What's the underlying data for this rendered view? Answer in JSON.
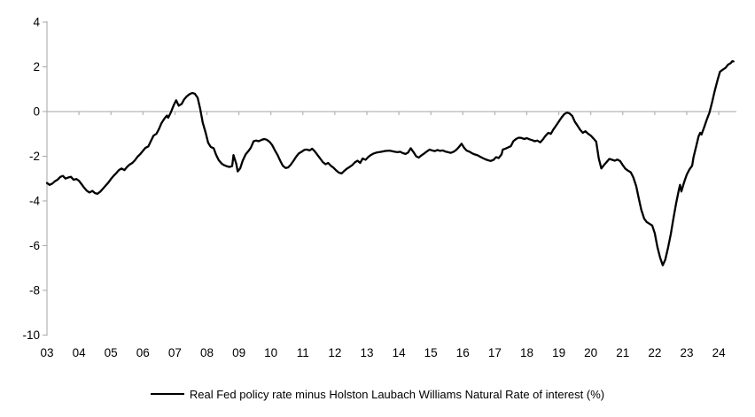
{
  "chart_data": {
    "type": "line",
    "title": "",
    "legend": "Real Fed policy rate minus Holston Laubach Williams Natural Rate of interest (%)",
    "xlabel": "",
    "ylabel": "",
    "ylim": [
      -10,
      4
    ],
    "xlim": [
      2003,
      2024.55
    ],
    "grid": false,
    "legend_position": "bottom",
    "y_tick_labels": [
      "4",
      "2",
      "0",
      "-2",
      "-4",
      "-6",
      "-8",
      "-10"
    ],
    "y_ticks": [
      4,
      2,
      0,
      -2,
      -4,
      -6,
      -8,
      -10
    ],
    "x_labels": [
      "03",
      "04",
      "05",
      "06",
      "07",
      "08",
      "09",
      "10",
      "11",
      "12",
      "13",
      "14",
      "15",
      "16",
      "17",
      "18",
      "19",
      "20",
      "21",
      "22",
      "23",
      "24"
    ],
    "x_label_years": [
      2003,
      2004,
      2005,
      2006,
      2007,
      2008,
      2009,
      2010,
      2011,
      2012,
      2013,
      2014,
      2015,
      2016,
      2017,
      2018,
      2019,
      2020,
      2021,
      2022,
      2023,
      2024
    ],
    "axis_color": "#a6a6a6",
    "zero_line_color": "#a6a6a6",
    "text_color": "#000000",
    "background": "#ffffff",
    "series": [
      {
        "name": "Real Fed policy rate minus Holston Laubach Williams Natural Rate of interest (%)",
        "color": "#000000",
        "points": [
          [
            2003.0,
            -3.2
          ],
          [
            2003.08,
            -3.28
          ],
          [
            2003.17,
            -3.22
          ],
          [
            2003.25,
            -3.12
          ],
          [
            2003.33,
            -3.05
          ],
          [
            2003.42,
            -2.92
          ],
          [
            2003.5,
            -2.88
          ],
          [
            2003.58,
            -3.0
          ],
          [
            2003.67,
            -2.95
          ],
          [
            2003.75,
            -2.92
          ],
          [
            2003.83,
            -3.05
          ],
          [
            2003.92,
            -3.02
          ],
          [
            2004.0,
            -3.1
          ],
          [
            2004.08,
            -3.25
          ],
          [
            2004.17,
            -3.42
          ],
          [
            2004.25,
            -3.55
          ],
          [
            2004.33,
            -3.62
          ],
          [
            2004.42,
            -3.55
          ],
          [
            2004.5,
            -3.65
          ],
          [
            2004.58,
            -3.68
          ],
          [
            2004.67,
            -3.58
          ],
          [
            2004.75,
            -3.45
          ],
          [
            2004.83,
            -3.32
          ],
          [
            2004.92,
            -3.18
          ],
          [
            2005.0,
            -3.02
          ],
          [
            2005.08,
            -2.88
          ],
          [
            2005.17,
            -2.75
          ],
          [
            2005.25,
            -2.62
          ],
          [
            2005.33,
            -2.55
          ],
          [
            2005.42,
            -2.62
          ],
          [
            2005.5,
            -2.48
          ],
          [
            2005.58,
            -2.38
          ],
          [
            2005.67,
            -2.3
          ],
          [
            2005.75,
            -2.18
          ],
          [
            2005.83,
            -2.02
          ],
          [
            2005.92,
            -1.9
          ],
          [
            2006.0,
            -1.76
          ],
          [
            2006.08,
            -1.62
          ],
          [
            2006.17,
            -1.56
          ],
          [
            2006.25,
            -1.32
          ],
          [
            2006.33,
            -1.08
          ],
          [
            2006.42,
            -1.0
          ],
          [
            2006.5,
            -0.78
          ],
          [
            2006.58,
            -0.52
          ],
          [
            2006.67,
            -0.32
          ],
          [
            2006.75,
            -0.18
          ],
          [
            2006.79,
            -0.28
          ],
          [
            2006.87,
            -0.05
          ],
          [
            2006.96,
            0.28
          ],
          [
            2007.04,
            0.5
          ],
          [
            2007.12,
            0.26
          ],
          [
            2007.21,
            0.34
          ],
          [
            2007.29,
            0.55
          ],
          [
            2007.37,
            0.68
          ],
          [
            2007.46,
            0.78
          ],
          [
            2007.54,
            0.83
          ],
          [
            2007.62,
            0.8
          ],
          [
            2007.71,
            0.62
          ],
          [
            2007.79,
            0.12
          ],
          [
            2007.87,
            -0.5
          ],
          [
            2007.96,
            -0.95
          ],
          [
            2008.04,
            -1.4
          ],
          [
            2008.12,
            -1.58
          ],
          [
            2008.21,
            -1.64
          ],
          [
            2008.29,
            -1.95
          ],
          [
            2008.37,
            -2.18
          ],
          [
            2008.46,
            -2.33
          ],
          [
            2008.54,
            -2.4
          ],
          [
            2008.62,
            -2.45
          ],
          [
            2008.71,
            -2.48
          ],
          [
            2008.79,
            -2.44
          ],
          [
            2008.83,
            -1.95
          ],
          [
            2008.92,
            -2.35
          ],
          [
            2008.96,
            -2.68
          ],
          [
            2009.04,
            -2.55
          ],
          [
            2009.12,
            -2.2
          ],
          [
            2009.21,
            -1.92
          ],
          [
            2009.29,
            -1.78
          ],
          [
            2009.37,
            -1.62
          ],
          [
            2009.46,
            -1.33
          ],
          [
            2009.54,
            -1.3
          ],
          [
            2009.62,
            -1.33
          ],
          [
            2009.71,
            -1.27
          ],
          [
            2009.79,
            -1.23
          ],
          [
            2009.87,
            -1.26
          ],
          [
            2009.96,
            -1.36
          ],
          [
            2010.04,
            -1.5
          ],
          [
            2010.12,
            -1.72
          ],
          [
            2010.21,
            -1.95
          ],
          [
            2010.29,
            -2.2
          ],
          [
            2010.37,
            -2.42
          ],
          [
            2010.46,
            -2.53
          ],
          [
            2010.54,
            -2.5
          ],
          [
            2010.62,
            -2.38
          ],
          [
            2010.71,
            -2.2
          ],
          [
            2010.79,
            -2.02
          ],
          [
            2010.87,
            -1.88
          ],
          [
            2010.96,
            -1.8
          ],
          [
            2011.04,
            -1.72
          ],
          [
            2011.12,
            -1.7
          ],
          [
            2011.21,
            -1.74
          ],
          [
            2011.29,
            -1.66
          ],
          [
            2011.37,
            -1.78
          ],
          [
            2011.46,
            -1.95
          ],
          [
            2011.54,
            -2.1
          ],
          [
            2011.62,
            -2.26
          ],
          [
            2011.71,
            -2.36
          ],
          [
            2011.79,
            -2.3
          ],
          [
            2011.87,
            -2.42
          ],
          [
            2011.96,
            -2.52
          ],
          [
            2012.04,
            -2.63
          ],
          [
            2012.12,
            -2.73
          ],
          [
            2012.21,
            -2.77
          ],
          [
            2012.29,
            -2.66
          ],
          [
            2012.37,
            -2.56
          ],
          [
            2012.46,
            -2.48
          ],
          [
            2012.54,
            -2.4
          ],
          [
            2012.62,
            -2.28
          ],
          [
            2012.71,
            -2.2
          ],
          [
            2012.79,
            -2.3
          ],
          [
            2012.87,
            -2.1
          ],
          [
            2012.96,
            -2.16
          ],
          [
            2013.04,
            -2.04
          ],
          [
            2013.12,
            -1.95
          ],
          [
            2013.21,
            -1.88
          ],
          [
            2013.29,
            -1.84
          ],
          [
            2013.37,
            -1.82
          ],
          [
            2013.46,
            -1.8
          ],
          [
            2013.54,
            -1.77
          ],
          [
            2013.62,
            -1.76
          ],
          [
            2013.71,
            -1.75
          ],
          [
            2013.79,
            -1.77
          ],
          [
            2013.87,
            -1.8
          ],
          [
            2013.96,
            -1.82
          ],
          [
            2014.04,
            -1.8
          ],
          [
            2014.12,
            -1.86
          ],
          [
            2014.21,
            -1.9
          ],
          [
            2014.29,
            -1.83
          ],
          [
            2014.37,
            -1.64
          ],
          [
            2014.46,
            -1.82
          ],
          [
            2014.54,
            -2.0
          ],
          [
            2014.62,
            -2.06
          ],
          [
            2014.71,
            -1.96
          ],
          [
            2014.79,
            -1.88
          ],
          [
            2014.87,
            -1.79
          ],
          [
            2014.96,
            -1.7
          ],
          [
            2015.04,
            -1.74
          ],
          [
            2015.12,
            -1.77
          ],
          [
            2015.21,
            -1.72
          ],
          [
            2015.29,
            -1.76
          ],
          [
            2015.37,
            -1.74
          ],
          [
            2015.46,
            -1.79
          ],
          [
            2015.54,
            -1.82
          ],
          [
            2015.62,
            -1.85
          ],
          [
            2015.71,
            -1.8
          ],
          [
            2015.79,
            -1.72
          ],
          [
            2015.87,
            -1.6
          ],
          [
            2015.96,
            -1.44
          ],
          [
            2016.04,
            -1.62
          ],
          [
            2016.12,
            -1.75
          ],
          [
            2016.21,
            -1.8
          ],
          [
            2016.29,
            -1.87
          ],
          [
            2016.37,
            -1.92
          ],
          [
            2016.46,
            -1.96
          ],
          [
            2016.54,
            -2.02
          ],
          [
            2016.62,
            -2.08
          ],
          [
            2016.71,
            -2.14
          ],
          [
            2016.79,
            -2.18
          ],
          [
            2016.87,
            -2.21
          ],
          [
            2016.96,
            -2.16
          ],
          [
            2017.04,
            -2.04
          ],
          [
            2017.12,
            -2.08
          ],
          [
            2017.21,
            -1.92
          ],
          [
            2017.25,
            -1.7
          ],
          [
            2017.33,
            -1.66
          ],
          [
            2017.42,
            -1.6
          ],
          [
            2017.5,
            -1.55
          ],
          [
            2017.58,
            -1.33
          ],
          [
            2017.67,
            -1.22
          ],
          [
            2017.75,
            -1.17
          ],
          [
            2017.83,
            -1.18
          ],
          [
            2017.92,
            -1.23
          ],
          [
            2018.0,
            -1.19
          ],
          [
            2018.08,
            -1.24
          ],
          [
            2018.17,
            -1.28
          ],
          [
            2018.25,
            -1.33
          ],
          [
            2018.33,
            -1.3
          ],
          [
            2018.42,
            -1.38
          ],
          [
            2018.5,
            -1.25
          ],
          [
            2018.58,
            -1.1
          ],
          [
            2018.67,
            -0.95
          ],
          [
            2018.75,
            -1.0
          ],
          [
            2018.83,
            -0.8
          ],
          [
            2018.92,
            -0.62
          ],
          [
            2019.0,
            -0.45
          ],
          [
            2019.08,
            -0.28
          ],
          [
            2019.17,
            -0.12
          ],
          [
            2019.25,
            -0.05
          ],
          [
            2019.33,
            -0.08
          ],
          [
            2019.42,
            -0.2
          ],
          [
            2019.5,
            -0.45
          ],
          [
            2019.58,
            -0.62
          ],
          [
            2019.67,
            -0.82
          ],
          [
            2019.75,
            -0.95
          ],
          [
            2019.83,
            -0.88
          ],
          [
            2019.92,
            -1.0
          ],
          [
            2020.0,
            -1.08
          ],
          [
            2020.08,
            -1.2
          ],
          [
            2020.17,
            -1.35
          ],
          [
            2020.25,
            -2.1
          ],
          [
            2020.33,
            -2.55
          ],
          [
            2020.42,
            -2.38
          ],
          [
            2020.5,
            -2.25
          ],
          [
            2020.58,
            -2.12
          ],
          [
            2020.67,
            -2.16
          ],
          [
            2020.75,
            -2.2
          ],
          [
            2020.83,
            -2.15
          ],
          [
            2020.92,
            -2.22
          ],
          [
            2021.0,
            -2.4
          ],
          [
            2021.08,
            -2.56
          ],
          [
            2021.17,
            -2.65
          ],
          [
            2021.25,
            -2.72
          ],
          [
            2021.33,
            -2.95
          ],
          [
            2021.42,
            -3.35
          ],
          [
            2021.5,
            -3.9
          ],
          [
            2021.58,
            -4.4
          ],
          [
            2021.67,
            -4.8
          ],
          [
            2021.75,
            -4.95
          ],
          [
            2021.83,
            -5.02
          ],
          [
            2021.92,
            -5.1
          ],
          [
            2022.0,
            -5.45
          ],
          [
            2022.08,
            -6.05
          ],
          [
            2022.17,
            -6.55
          ],
          [
            2022.25,
            -6.88
          ],
          [
            2022.33,
            -6.62
          ],
          [
            2022.42,
            -6.05
          ],
          [
            2022.5,
            -5.48
          ],
          [
            2022.58,
            -4.82
          ],
          [
            2022.67,
            -4.08
          ],
          [
            2022.75,
            -3.52
          ],
          [
            2022.79,
            -3.28
          ],
          [
            2022.83,
            -3.58
          ],
          [
            2022.92,
            -3.15
          ],
          [
            2023.0,
            -2.82
          ],
          [
            2023.08,
            -2.6
          ],
          [
            2023.17,
            -2.42
          ],
          [
            2023.21,
            -2.05
          ],
          [
            2023.29,
            -1.58
          ],
          [
            2023.37,
            -1.1
          ],
          [
            2023.42,
            -0.95
          ],
          [
            2023.46,
            -1.03
          ],
          [
            2023.54,
            -0.72
          ],
          [
            2023.62,
            -0.38
          ],
          [
            2023.71,
            -0.05
          ],
          [
            2023.79,
            0.4
          ],
          [
            2023.87,
            0.9
          ],
          [
            2023.96,
            1.4
          ],
          [
            2024.04,
            1.78
          ],
          [
            2024.12,
            1.87
          ],
          [
            2024.21,
            1.95
          ],
          [
            2024.29,
            2.1
          ],
          [
            2024.37,
            2.16
          ],
          [
            2024.42,
            2.25
          ],
          [
            2024.46,
            2.24
          ]
        ]
      }
    ]
  }
}
